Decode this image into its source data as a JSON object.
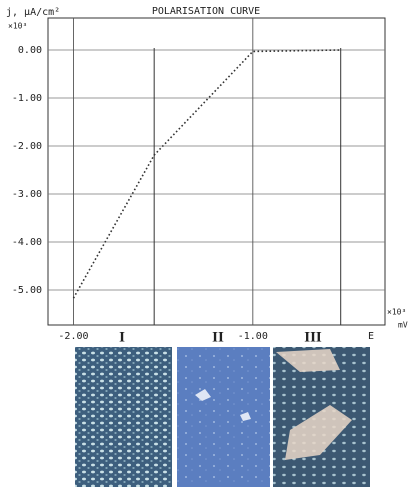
{
  "chart_data": {
    "type": "line",
    "title": "POLARISATION CURVE",
    "y_label": "j, μA/cm²",
    "y_multiplier": "×10³",
    "x_multiplier": "×10³",
    "x_label": "mV",
    "x": [
      -2.0,
      -1.55,
      -1.0,
      -0.51
    ],
    "series": [
      {
        "color": "#333333",
        "values": [
          -5.17,
          -2.19,
          -0.03,
          0.0
        ]
      }
    ],
    "xlim": [
      -2.142,
      -0.263
    ],
    "ylim": [
      -5.73,
      0.667
    ],
    "xticks": [
      {
        "value": -2,
        "label": "-2.00"
      },
      {
        "value": -1,
        "label": "-1.00"
      }
    ],
    "yticks": [
      {
        "value": 0,
        "label": "0.00"
      },
      {
        "value": -1,
        "label": "-1.00"
      },
      {
        "value": -2,
        "label": "-2.00"
      },
      {
        "value": -3,
        "label": "-3.00"
      },
      {
        "value": -4,
        "label": "-4.00"
      },
      {
        "value": -5,
        "label": "-5.00"
      }
    ],
    "grid": true,
    "region_boundaries": [
      -1.55,
      -0.51
    ],
    "region_labels": [
      "I",
      "II",
      "III"
    ],
    "end_marker": "E"
  }
}
